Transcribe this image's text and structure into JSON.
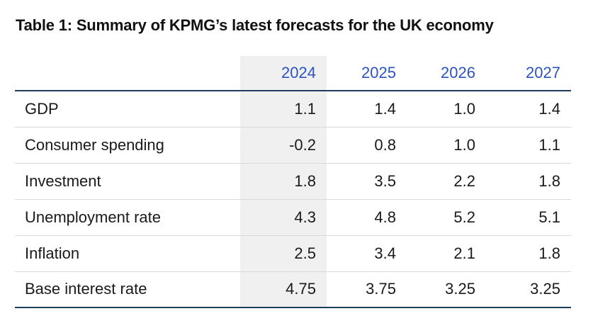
{
  "title": "Table 1: Summary of KPMG’s latest forecasts for the UK economy",
  "table": {
    "columns": [
      "2024",
      "2025",
      "2026",
      "2027"
    ],
    "highlighted_column": "2024",
    "rows": [
      {
        "label": "GDP",
        "values": [
          "1.1",
          "1.4",
          "1.0",
          "1.4"
        ]
      },
      {
        "label": "Consumer spending",
        "values": [
          "-0.2",
          "0.8",
          "1.0",
          "1.1"
        ]
      },
      {
        "label": "Investment",
        "values": [
          "1.8",
          "3.5",
          "2.2",
          "1.8"
        ]
      },
      {
        "label": "Unemployment rate",
        "values": [
          "4.3",
          "4.8",
          "5.2",
          "5.1"
        ]
      },
      {
        "label": "Inflation",
        "values": [
          "2.5",
          "3.4",
          "2.1",
          "1.8"
        ]
      },
      {
        "label": "Base interest rate",
        "values": [
          "4.75",
          "3.75",
          "3.25",
          "3.25"
        ]
      }
    ]
  },
  "chart_data": {
    "type": "table",
    "title": "Table 1: Summary of KPMG’s latest forecasts for the UK economy",
    "categories": [
      "2024",
      "2025",
      "2026",
      "2027"
    ],
    "series": [
      {
        "name": "GDP",
        "values": [
          1.1,
          1.4,
          1.0,
          1.4
        ]
      },
      {
        "name": "Consumer spending",
        "values": [
          -0.2,
          0.8,
          1.0,
          1.1
        ]
      },
      {
        "name": "Investment",
        "values": [
          1.8,
          3.5,
          2.2,
          1.8
        ]
      },
      {
        "name": "Unemployment rate",
        "values": [
          4.3,
          4.8,
          5.2,
          5.1
        ]
      },
      {
        "name": "Inflation",
        "values": [
          2.5,
          3.4,
          2.1,
          1.8
        ]
      },
      {
        "name": "Base interest rate",
        "values": [
          4.75,
          3.75,
          3.25,
          3.25
        ]
      }
    ],
    "layout_hints": {
      "highlighted_column": "2024",
      "grid": "horizontal-rules-only"
    }
  },
  "colors": {
    "year_text": "#2d52c3",
    "rule": "#1d3e5c",
    "highlight_bg": "#f0f0f0",
    "row_divider": "#d9d9d9",
    "text": "#1a1a1a"
  }
}
